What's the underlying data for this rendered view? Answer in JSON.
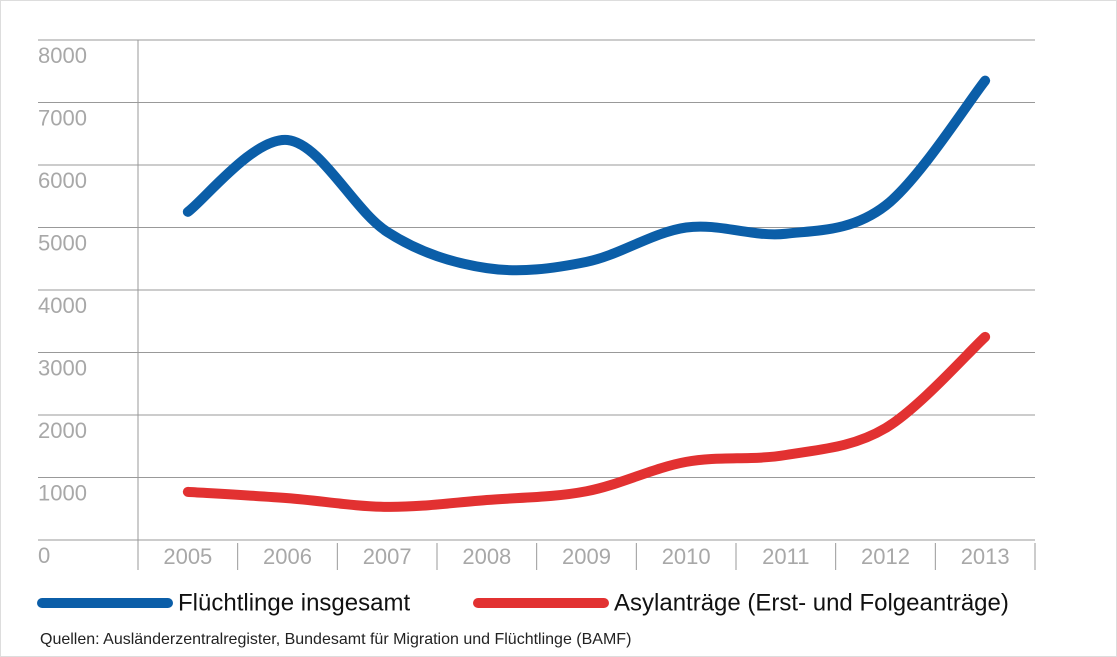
{
  "chart_data": {
    "type": "line",
    "categories": [
      "2005",
      "2006",
      "2007",
      "2008",
      "2009",
      "2010",
      "2011",
      "2012",
      "2013"
    ],
    "series": [
      {
        "name": "Flüchtlinge insgesamt",
        "color": "#0b5ea8",
        "values": [
          5250,
          6400,
          4930,
          4350,
          4450,
          5000,
          4900,
          5350,
          7350
        ]
      },
      {
        "name": "Asylanträge (Erst- und Folgeanträge)",
        "color": "#e23131",
        "values": [
          770,
          670,
          530,
          640,
          780,
          1250,
          1360,
          1790,
          3250
        ]
      }
    ],
    "ylim": [
      0,
      8000
    ],
    "yticks": [
      0,
      1000,
      2000,
      3000,
      4000,
      5000,
      6000,
      7000,
      8000
    ],
    "grid": true,
    "source": "Quellen: Ausländerzentralregister, Bundesamt für Migration und Flüchtlinge (BAMF)"
  }
}
